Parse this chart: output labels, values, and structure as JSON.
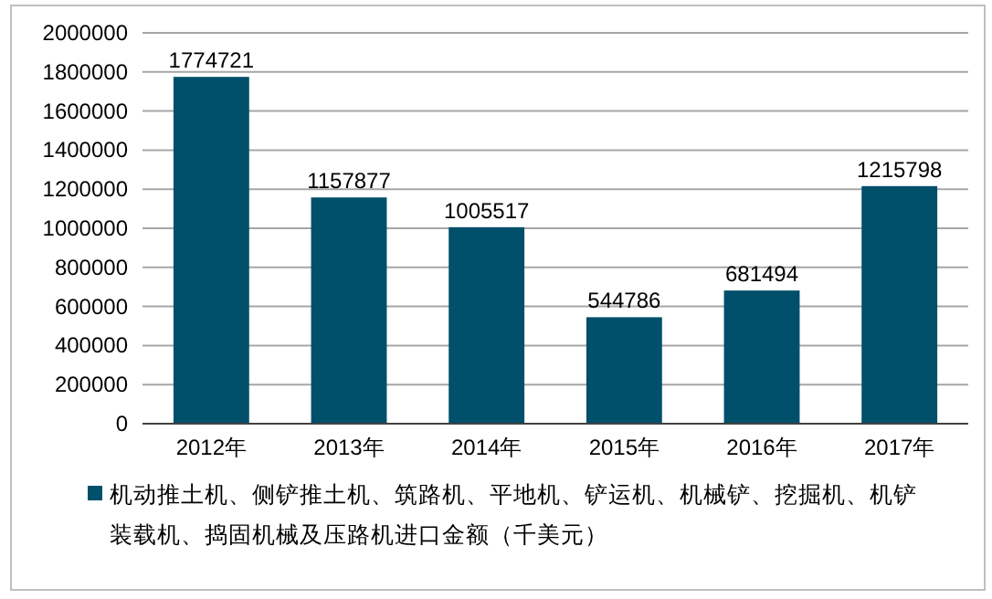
{
  "chart_data": {
    "type": "bar",
    "categories": [
      "2012年",
      "2013年",
      "2014年",
      "2015年",
      "2016年",
      "2017年"
    ],
    "series": [
      {
        "name": "机动推土机、侧铲推土机、筑路机、平地机、铲运机、机械铲、挖掘机、机铲装载机、捣固机械及压路机进口金额（千美元）",
        "color": "#004f6b",
        "values": [
          1774721,
          1157877,
          1005517,
          544786,
          681494,
          1215798
        ]
      }
    ],
    "ylim": [
      0,
      2000000
    ],
    "yticks": [
      0,
      200000,
      400000,
      600000,
      800000,
      1000000,
      1200000,
      1400000,
      1600000,
      1800000,
      2000000
    ],
    "grid": "y",
    "data_labels": true,
    "legend": "bottom"
  }
}
